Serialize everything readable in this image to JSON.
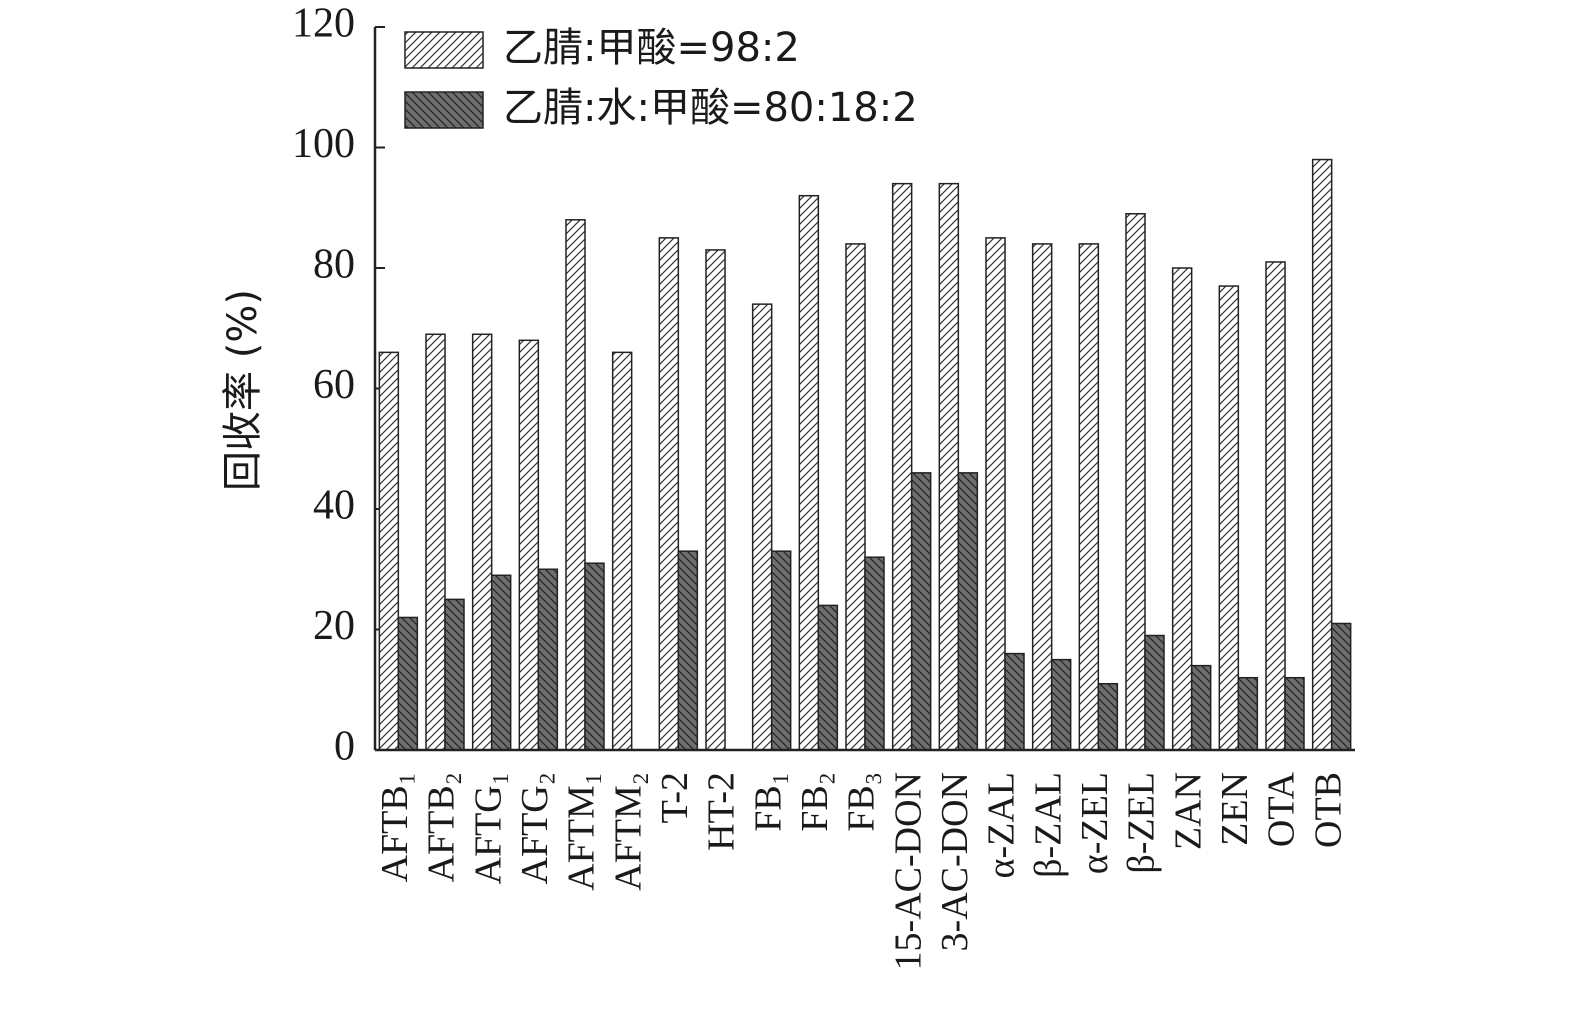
{
  "chart_data": {
    "type": "bar",
    "y_label": "回收率 (%)",
    "categories": [
      "AFTB₁",
      "AFTB₂",
      "AFTG₁",
      "AFTG₂",
      "AFTM₁",
      "AFTM₂",
      "T-2",
      "HT-2",
      "FB₁",
      "FB₂",
      "FB₃",
      "15-AC-DON",
      "3-AC-DON",
      "α-ZAL",
      "β-ZAL",
      "α-ZEL",
      "β-ZEL",
      "ZAN",
      "ZEN",
      "OTA",
      "OTB"
    ],
    "series": [
      {
        "name": "乙腈:甲酸=98:2",
        "color": "#ffffff",
        "hatch": "/",
        "values": [
          66,
          69,
          69,
          68,
          88,
          66,
          85,
          83,
          74,
          92,
          84,
          94,
          94,
          85,
          84,
          84,
          89,
          80,
          77,
          81,
          98
        ]
      },
      {
        "name": "乙腈:水:甲酸=80:18:2",
        "color": "#6e6e6e",
        "hatch": "\\",
        "values": [
          22,
          25,
          29,
          30,
          31,
          0,
          33,
          0,
          33,
          24,
          32,
          46,
          46,
          16,
          15,
          11,
          19,
          14,
          12,
          12,
          21
        ]
      }
    ],
    "ylim": [
      0,
      120
    ],
    "yticks": [
      0,
      20,
      40,
      60,
      80,
      100,
      120
    ],
    "legend": "upper-left"
  }
}
